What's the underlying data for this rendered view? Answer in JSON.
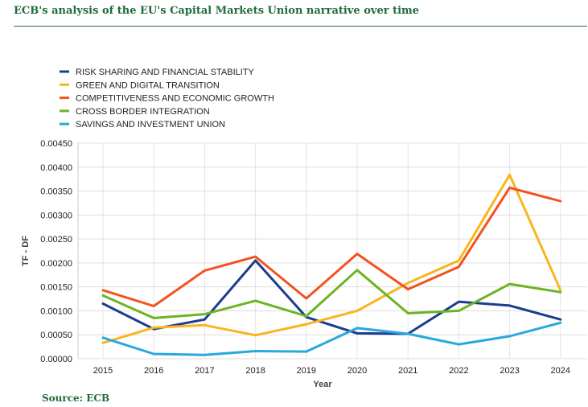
{
  "header": {
    "title": "ECB's analysis of the EU's Capital Markets Union narrative over time"
  },
  "footer": {
    "source": "Source: ECB"
  },
  "chart_data": {
    "type": "line",
    "title": "ECB's analysis of the EU's Capital Markets Union narrative over time",
    "xlabel": "Year",
    "ylabel": "TF - DF",
    "ylim": [
      0,
      0.0045
    ],
    "yticks": [
      "0.00000",
      "0.00050",
      "0.00100",
      "0.00150",
      "0.00200",
      "0.00250",
      "0.00300",
      "0.00350",
      "0.00400",
      "0.00450"
    ],
    "ytick_values": [
      0,
      0.0005,
      0.001,
      0.0015,
      0.002,
      0.0025,
      0.003,
      0.0035,
      0.004,
      0.0045
    ],
    "categories": [
      "2015",
      "2016",
      "2017",
      "2018",
      "2019",
      "2020",
      "2021",
      "2022",
      "2023",
      "2024"
    ],
    "grid": true,
    "legend_position": "top-left",
    "series": [
      {
        "name": "RISK SHARING AND FINANCIAL STABILITY",
        "color": "#1a3d8f",
        "values": [
          0.00115,
          0.00062,
          0.00082,
          0.00205,
          0.00087,
          0.00053,
          0.00052,
          0.00119,
          0.00111,
          0.00082
        ]
      },
      {
        "name": "GREEN AND DIGITAL TRANSITION",
        "color": "#f9b51c",
        "values": [
          0.00033,
          0.00065,
          0.0007,
          0.00049,
          0.00072,
          0.001,
          0.00158,
          0.00205,
          0.00384,
          0.00143
        ]
      },
      {
        "name": "COMPETITIVENESS AND ECONOMIC GROWTH",
        "color": "#f4511e",
        "values": [
          0.00143,
          0.0011,
          0.00184,
          0.00213,
          0.00126,
          0.00219,
          0.00145,
          0.00192,
          0.00357,
          0.00329
        ]
      },
      {
        "name": "CROSS BORDER INTEGRATION",
        "color": "#6db423",
        "values": [
          0.00132,
          0.00085,
          0.00093,
          0.00121,
          0.00089,
          0.00185,
          0.00095,
          0.001,
          0.00156,
          0.00139
        ]
      },
      {
        "name": "SAVINGS AND INVESTMENT UNION",
        "color": "#29a8de",
        "values": [
          0.00044,
          0.0001,
          8e-05,
          0.00016,
          0.00015,
          0.00064,
          0.00052,
          0.0003,
          0.00047,
          0.00075
        ]
      }
    ]
  }
}
